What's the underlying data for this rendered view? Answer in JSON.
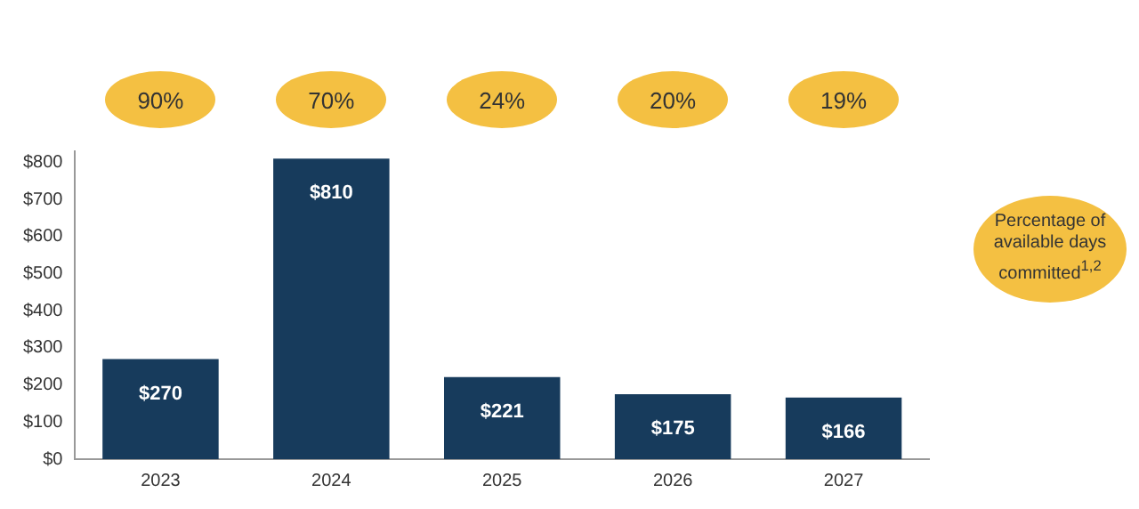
{
  "chart_data": {
    "type": "bar",
    "categories": [
      "2023",
      "2024",
      "2025",
      "2026",
      "2027"
    ],
    "values": [
      270,
      810,
      221,
      175,
      166
    ],
    "color": "#173b5c",
    "value_labels": [
      "$270",
      "$810",
      "$221",
      "$175",
      "$166"
    ],
    "ylim": [
      0,
      830
    ],
    "yticks": [
      {
        "value": 0,
        "label": "$0"
      },
      {
        "value": 100,
        "label": "$100"
      },
      {
        "value": 200,
        "label": "$200"
      },
      {
        "value": 300,
        "label": "$300"
      },
      {
        "value": 400,
        "label": "$400"
      },
      {
        "value": 500,
        "label": "$500"
      },
      {
        "value": 600,
        "label": "$600"
      },
      {
        "value": 700,
        "label": "$700"
      },
      {
        "value": 800,
        "label": "$800"
      }
    ],
    "grid": false,
    "legend": false,
    "annotations": [
      "90%",
      "70%",
      "24%",
      "20%",
      "19%",
      "Percentage of available days committed$^{1,2}$"
    ]
  }
}
